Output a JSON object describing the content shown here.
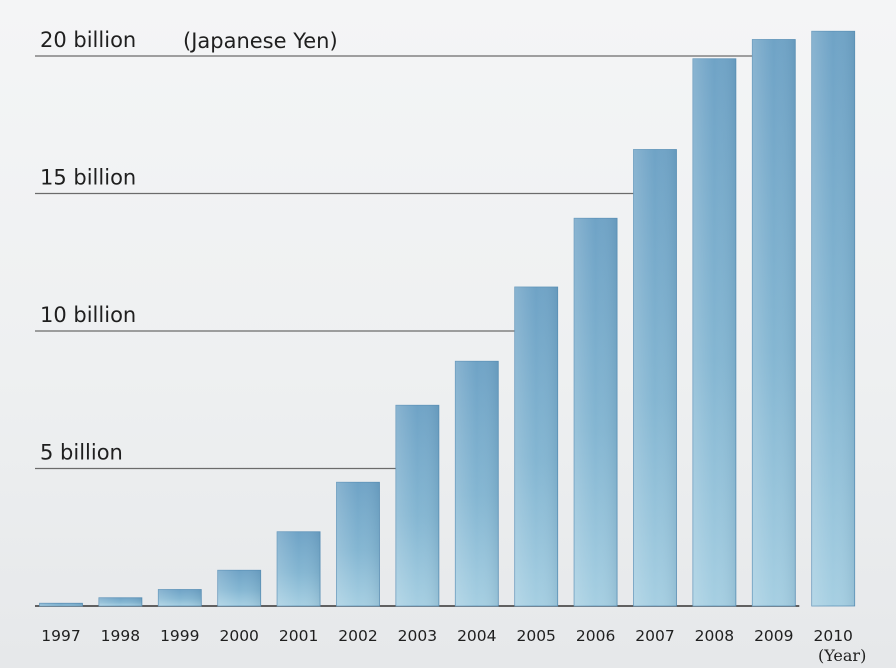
{
  "chart_data": {
    "type": "bar",
    "title": "",
    "unit_label": "(Japanese Yen)",
    "xunit_label": "(Year)",
    "categories": [
      "1997",
      "1998",
      "1999",
      "2000",
      "2001",
      "2002",
      "2003",
      "2004",
      "2005",
      "2006",
      "2007",
      "2008",
      "2009",
      "2010"
    ],
    "values": [
      0.1,
      0.3,
      0.6,
      1.3,
      2.7,
      4.5,
      7.3,
      8.9,
      11.6,
      14.1,
      16.6,
      19.9,
      20.6,
      20.9
    ],
    "value_unit": "billion Japanese Yen",
    "yticks": [
      {
        "value": 5,
        "label": "5 billion"
      },
      {
        "value": 10,
        "label": "10 billion"
      },
      {
        "value": 15,
        "label": "15 billion"
      },
      {
        "value": 20,
        "label": "20 billion"
      }
    ],
    "ylim": [
      0,
      21.5
    ],
    "grid": true,
    "bar_color": "#7fb0cf"
  }
}
